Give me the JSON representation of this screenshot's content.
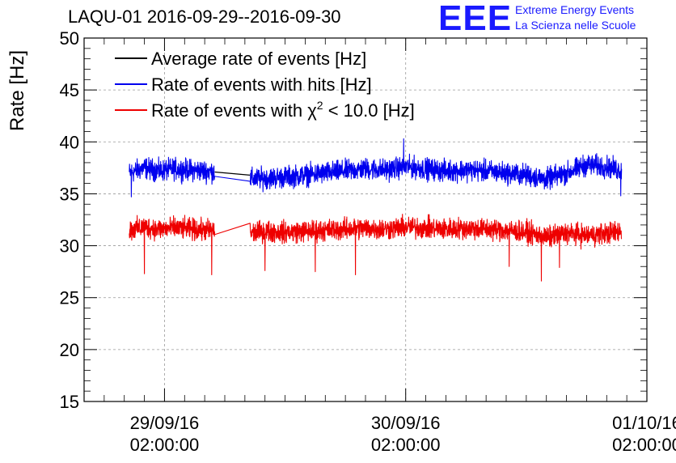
{
  "title": "LAQU-01 2016-09-29--2016-09-30",
  "logo": {
    "mark": "EEE",
    "line1": "Extreme Energy Events",
    "line2": "La Scienza nelle Scuole"
  },
  "colors": {
    "average": "#000000",
    "hits": "#0000ee",
    "chi2": "#ee0000",
    "logo": "#1a1aff",
    "grid": "#999999"
  },
  "chart_data": {
    "type": "line",
    "title": "LAQU-01 2016-09-29--2016-09-30",
    "ylabel": "Rate [Hz]",
    "xlabel": "",
    "ylim": [
      15,
      50
    ],
    "yticks": [
      15,
      20,
      25,
      30,
      35,
      40,
      45,
      50
    ],
    "xlim_hours": [
      -8,
      48
    ],
    "xticks": [
      {
        "hour": 0,
        "date": "29/09/16",
        "time": "02:00:00"
      },
      {
        "hour": 24,
        "date": "30/09/16",
        "time": "02:00:00"
      },
      {
        "hour": 48,
        "date": "01/10/16",
        "time": "02:00:00"
      }
    ],
    "x_reference": "hours since 29/09/16 02:00:00",
    "grid": true,
    "legend_position": "top-left",
    "legend": [
      {
        "key": "average",
        "label": "Average rate of events [Hz]"
      },
      {
        "key": "hits",
        "label": "Rate of events with hits [Hz]"
      },
      {
        "key": "chi2",
        "label_prefix": "Rate of events with ",
        "label_symbol": "χ",
        "label_sup": "2",
        "label_suffix": " < 10.0 [Hz]"
      }
    ],
    "data_gap_hours": [
      5.0,
      8.5
    ],
    "series": [
      {
        "key": "hits",
        "name": "Rate of events with hits [Hz]",
        "x": [
          -3.5,
          -2,
          -0.5,
          1,
          2.5,
          4,
          5,
          8.5,
          10,
          12,
          14,
          16,
          18,
          20,
          22,
          24,
          26,
          28,
          30,
          32,
          34,
          36,
          38,
          40,
          42,
          44,
          45.5
        ],
        "y": [
          37.0,
          37.5,
          37.2,
          37.4,
          37.3,
          37.2,
          37.1,
          36.4,
          36.5,
          36.6,
          36.8,
          37.0,
          37.2,
          37.4,
          37.3,
          37.6,
          37.4,
          37.2,
          37.3,
          37.2,
          37.0,
          36.8,
          36.4,
          37.0,
          37.8,
          37.6,
          37.2
        ],
        "noise": 1.0,
        "spikes": [
          {
            "x": 23.8,
            "y": 40.3
          },
          {
            "x": 45.4,
            "y": 34.8
          },
          {
            "x": -3.3,
            "y": 34.7
          }
        ]
      },
      {
        "key": "average",
        "name": "Average rate of events [Hz]",
        "x": [
          5.0,
          8.5
        ],
        "y": [
          37.1,
          36.8
        ]
      },
      {
        "key": "chi2",
        "name": "Rate of events with χ2 < 10.0 [Hz]",
        "x": [
          -3.5,
          -2,
          -0.5,
          1,
          2.5,
          4,
          5,
          8.5,
          10,
          12,
          14,
          16,
          18,
          20,
          22,
          24,
          26,
          28,
          30,
          32,
          34,
          36,
          38,
          40,
          42,
          44,
          45.5
        ],
        "y": [
          31.5,
          31.8,
          31.6,
          31.7,
          31.6,
          31.5,
          31.5,
          31.2,
          31.4,
          31.3,
          31.4,
          31.5,
          31.6,
          31.7,
          31.6,
          31.8,
          31.7,
          31.6,
          31.7,
          31.6,
          31.5,
          31.3,
          30.8,
          31.2,
          31.0,
          31.2,
          31.4
        ],
        "noise": 1.0,
        "spikes": [
          {
            "x": -2.0,
            "y": 27.3
          },
          {
            "x": 4.7,
            "y": 27.2
          },
          {
            "x": 10.0,
            "y": 27.6
          },
          {
            "x": 15.0,
            "y": 27.5
          },
          {
            "x": 19.0,
            "y": 27.2
          },
          {
            "x": 34.3,
            "y": 28.0
          },
          {
            "x": 37.5,
            "y": 26.6
          },
          {
            "x": 39.3,
            "y": 27.9
          }
        ]
      }
    ]
  }
}
